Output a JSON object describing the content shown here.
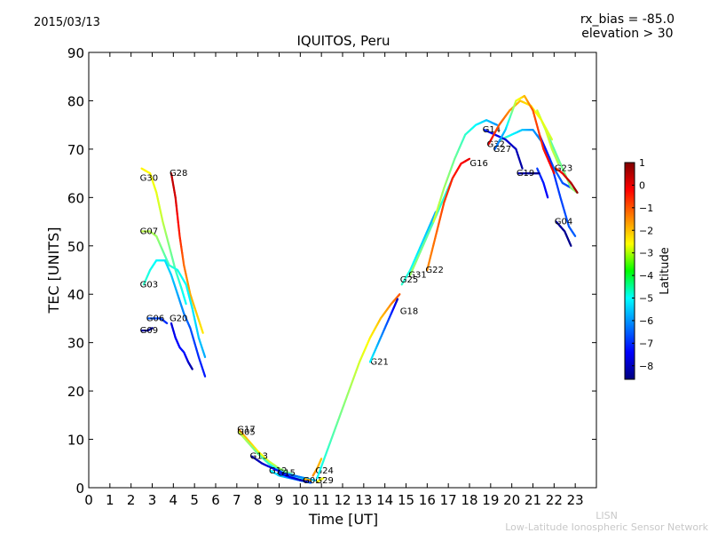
{
  "date": "2015/03/13",
  "params": {
    "rx_bias": "rx_bias = -85.0",
    "elevation": "elevation > 30"
  },
  "credit": {
    "short": "LISN",
    "long": "Low-Latitude Ionospheric Sensor Network"
  },
  "chart_data": {
    "type": "scatter",
    "title": "IQUITOS, Peru",
    "xlabel": "Time [UT]",
    "ylabel": "TEC [UNITS]",
    "xlim": [
      0,
      24
    ],
    "ylim": [
      0,
      90
    ],
    "xticks": [
      0,
      1,
      2,
      3,
      4,
      5,
      6,
      7,
      8,
      9,
      10,
      11,
      12,
      13,
      14,
      15,
      16,
      17,
      18,
      19,
      20,
      21,
      22,
      23
    ],
    "yticks": [
      0,
      10,
      20,
      30,
      40,
      50,
      60,
      70,
      80,
      90
    ],
    "colorbar": {
      "label": "Latitude",
      "min": -8.6,
      "max": 1.0,
      "ticks": [
        1,
        0,
        -1,
        -2,
        -3,
        -4,
        -5,
        -6,
        -7,
        -8
      ]
    },
    "series": [
      {
        "name": "G30",
        "label_at": [
          2.5,
          64
        ],
        "points": [
          [
            2.5,
            66,
            -2.5
          ],
          [
            2.9,
            65,
            -2.6
          ],
          [
            3.2,
            61,
            -2.8
          ],
          [
            3.5,
            55,
            -3.2
          ],
          [
            3.8,
            50,
            -3.8
          ],
          [
            4.1,
            45,
            -4.3
          ],
          [
            4.4,
            41,
            -4.8
          ],
          [
            4.6,
            38,
            -5
          ]
        ]
      },
      {
        "name": "G28",
        "label_at": [
          3.9,
          65
        ],
        "points": [
          [
            3.9,
            65,
            0.5
          ],
          [
            4.1,
            60,
            0.2
          ],
          [
            4.3,
            52,
            -0.5
          ],
          [
            4.5,
            46,
            -1.2
          ],
          [
            4.8,
            40,
            -1.8
          ],
          [
            5.1,
            36,
            -2.1
          ],
          [
            5.4,
            32,
            -2.4
          ]
        ]
      },
      {
        "name": "G07",
        "label_at": [
          2.5,
          53
        ],
        "points": [
          [
            2.5,
            53,
            -3.2
          ],
          [
            2.9,
            53,
            -3.3
          ],
          [
            3.2,
            52,
            -3.5
          ],
          [
            3.5,
            49,
            -4
          ],
          [
            3.8,
            46,
            -4.5
          ],
          [
            4.2,
            45,
            -4.8
          ],
          [
            4.6,
            42,
            -5
          ],
          [
            4.9,
            37,
            -5.2
          ],
          [
            5.2,
            31,
            -5.5
          ],
          [
            5.5,
            27,
            -5.8
          ]
        ]
      },
      {
        "name": "G03",
        "label_at": [
          2.5,
          42
        ],
        "points": [
          [
            2.6,
            42,
            -4.5
          ],
          [
            2.9,
            45,
            -4.8
          ],
          [
            3.2,
            47,
            -5
          ],
          [
            3.6,
            47,
            -5.2
          ],
          [
            3.9,
            44,
            -5.5
          ],
          [
            4.2,
            40,
            -5.8
          ],
          [
            4.5,
            36,
            -6.2
          ],
          [
            4.8,
            33,
            -6.6
          ],
          [
            5.2,
            27,
            -7
          ],
          [
            5.5,
            23,
            -7.2
          ]
        ]
      },
      {
        "name": "G06",
        "label_at": [
          2.8,
          35
        ],
        "points": [
          [
            2.8,
            35,
            -6.5
          ],
          [
            3.1,
            35,
            -6.7
          ],
          [
            3.4,
            35,
            -6.8
          ],
          [
            3.7,
            34,
            -7
          ]
        ]
      },
      {
        "name": "G09",
        "label_at": [
          2.5,
          32.5
        ],
        "points": [
          [
            2.5,
            32.5,
            -8.2
          ],
          [
            2.8,
            32.5,
            -8.3
          ],
          [
            3,
            33,
            -8.2
          ]
        ]
      },
      {
        "name": "G20",
        "label_at": [
          3.9,
          35
        ],
        "points": [
          [
            3.9,
            34,
            -7.8
          ],
          [
            4.1,
            31,
            -7.5
          ],
          [
            4.3,
            29,
            -7.3
          ],
          [
            4.5,
            28,
            -7.2
          ],
          [
            4.7,
            26,
            -7.8
          ],
          [
            4.9,
            24.5,
            -8.3
          ]
        ]
      },
      {
        "name": "G17",
        "label_at": [
          7.1,
          12
        ],
        "points": [
          [
            7.1,
            12,
            -1.5
          ],
          [
            7.5,
            10,
            -2
          ],
          [
            8,
            7.5,
            -2.5
          ],
          [
            8.5,
            5.5,
            -3
          ],
          [
            9,
            4,
            -3.5
          ],
          [
            9.5,
            3,
            -4
          ],
          [
            10,
            2,
            -4.5
          ],
          [
            10.5,
            1.5,
            -5
          ]
        ]
      },
      {
        "name": "G05",
        "label_at": [
          7.1,
          11.5
        ],
        "points": [
          [
            7.1,
            11.5,
            -3
          ],
          [
            7.5,
            9.5,
            -3.5
          ],
          [
            8,
            7,
            -4
          ],
          [
            8.5,
            5,
            -4.5
          ],
          [
            9,
            3.5,
            -5
          ],
          [
            9.5,
            2.5,
            -5.5
          ],
          [
            10,
            1.5,
            -6
          ],
          [
            10.5,
            1,
            -6.3
          ]
        ]
      },
      {
        "name": "G13",
        "label_at": [
          7.7,
          6.5
        ],
        "points": [
          [
            7.7,
            6.5,
            -8.3
          ],
          [
            8.2,
            5,
            -8
          ],
          [
            8.7,
            4,
            -7.5
          ],
          [
            9.2,
            3,
            -7
          ],
          [
            9.7,
            2.5,
            -6.5
          ],
          [
            10.2,
            2,
            -6
          ],
          [
            10.7,
            1.5,
            -5.5
          ]
        ]
      },
      {
        "name": "G12",
        "label_at": [
          8.6,
          3.5
        ],
        "points": [
          [
            8.6,
            3.5,
            -5
          ],
          [
            9,
            2.5,
            -5.5
          ],
          [
            9.5,
            2,
            -6
          ],
          [
            10,
            1.5,
            -6.5
          ],
          [
            10.5,
            1.2,
            -7
          ]
        ]
      },
      {
        "name": "G15",
        "label_at": [
          9,
          3
        ],
        "points": [
          [
            9,
            3,
            -7
          ],
          [
            9.5,
            2.2,
            -7.5
          ],
          [
            10,
            1.6,
            -8
          ],
          [
            10.3,
            1.3,
            -8.3
          ]
        ]
      },
      {
        "name": "G02",
        "label_at": [
          10.2,
          1.5
        ],
        "points": [
          [
            10.2,
            1.8,
            -2
          ],
          [
            10.5,
            1.5,
            -1.8
          ]
        ]
      },
      {
        "name": "G24",
        "label_at": [
          10.8,
          3.5
        ],
        "points": [
          [
            10.6,
            2.5,
            -1.5
          ],
          [
            10.8,
            4,
            -1.8
          ],
          [
            11,
            6,
            -2
          ]
        ]
      },
      {
        "name": "G29",
        "label_at": [
          10.8,
          1.5
        ],
        "points": [
          [
            10.8,
            1.2,
            -2.5
          ],
          [
            11.1,
            2,
            -2.7
          ]
        ]
      },
      {
        "name": "G21",
        "label_at": [
          13.4,
          26
        ],
        "points": [
          [
            10.8,
            2,
            -5
          ],
          [
            11.3,
            8,
            -4.5
          ],
          [
            11.8,
            14,
            -4
          ],
          [
            12.3,
            20,
            -3.5
          ],
          [
            12.8,
            26,
            -3
          ],
          [
            13.3,
            31,
            -2.5
          ],
          [
            13.8,
            35,
            -2
          ],
          [
            14.3,
            38,
            -1.5
          ],
          [
            14.7,
            40,
            -1
          ]
        ]
      },
      {
        "name": "G18",
        "label_at": [
          14.8,
          36.5
        ],
        "points": [
          [
            13.3,
            26,
            -5
          ],
          [
            13.8,
            31,
            -6
          ],
          [
            14.3,
            36,
            -7
          ],
          [
            14.6,
            39,
            -8
          ]
        ]
      },
      {
        "name": "G25",
        "label_at": [
          14.8,
          43
        ],
        "points": [
          [
            14.8,
            42,
            -4.5
          ],
          [
            15.2,
            45,
            -4.8
          ],
          [
            15.6,
            49,
            -5.2
          ],
          [
            16,
            53,
            -5.5
          ],
          [
            16.4,
            57,
            -5.8
          ]
        ]
      },
      {
        "name": "G31",
        "label_at": [
          15.2,
          44
        ],
        "points": [
          [
            15.2,
            44,
            -3.5
          ],
          [
            15.6,
            48,
            -3.8
          ],
          [
            16,
            52,
            -4.1
          ],
          [
            16.4,
            56,
            -4.4
          ],
          [
            16.8,
            60,
            -4.7
          ],
          [
            17.2,
            64,
            -5
          ]
        ]
      },
      {
        "name": "G22",
        "label_at": [
          16,
          45
        ],
        "points": [
          [
            16,
            45,
            -1.5
          ],
          [
            16.4,
            52,
            -1.2
          ],
          [
            16.8,
            59,
            -0.8
          ],
          [
            17.2,
            64,
            -0.5
          ],
          [
            17.6,
            67,
            -0.2
          ],
          [
            18,
            68,
            0
          ]
        ]
      },
      {
        "name": "G16",
        "label_at": [
          18.1,
          67
        ],
        "points": [
          [
            16.3,
            55,
            -3
          ],
          [
            16.8,
            62,
            -3.5
          ],
          [
            17.3,
            68,
            -4
          ],
          [
            17.8,
            73,
            -4.5
          ],
          [
            18.3,
            75,
            -5
          ],
          [
            18.8,
            76,
            -5.5
          ],
          [
            19.3,
            75,
            -6
          ]
        ]
      },
      {
        "name": "G14",
        "label_at": [
          18.7,
          74
        ],
        "points": [
          [
            18.7,
            74,
            -7
          ],
          [
            19.2,
            73,
            -7.5
          ],
          [
            19.7,
            72,
            -7.8
          ],
          [
            20.2,
            70,
            -8
          ],
          [
            20.5,
            66,
            -8.3
          ]
        ]
      },
      {
        "name": "G32",
        "label_at": [
          18.9,
          71
        ],
        "points": [
          [
            18.9,
            71,
            0
          ],
          [
            19.4,
            75,
            -1
          ],
          [
            19.9,
            78,
            -1.5
          ],
          [
            20.4,
            80,
            -2
          ],
          [
            20.9,
            79,
            -2.5
          ],
          [
            21.4,
            76,
            -2.8
          ],
          [
            21.9,
            72,
            -3
          ]
        ]
      },
      {
        "name": "G27",
        "label_at": [
          19.2,
          70
        ],
        "points": [
          [
            19.2,
            70,
            -6.5
          ],
          [
            19.7,
            74,
            -5.5
          ],
          [
            20.2,
            80,
            -3
          ],
          [
            20.6,
            81,
            -2
          ],
          [
            21,
            78,
            -1
          ],
          [
            21.5,
            70,
            -0.5
          ],
          [
            22,
            65,
            0
          ]
        ]
      },
      {
        "name": "G19",
        "label_at": [
          20.3,
          65
        ],
        "points": [
          [
            20.3,
            65,
            -8
          ],
          [
            20.8,
            65,
            -8.3
          ],
          [
            21.3,
            65,
            -8.5
          ]
        ]
      },
      {
        "name": "G23",
        "label_at": [
          22.1,
          66
        ],
        "points": [
          [
            22.1,
            66,
            -1
          ],
          [
            22.4,
            65,
            0
          ],
          [
            22.8,
            63,
            0.5
          ],
          [
            23.1,
            61,
            0.8
          ]
        ]
      },
      {
        "name": "G04",
        "label_at": [
          22.1,
          55
        ],
        "points": [
          [
            22.1,
            55,
            -8.2
          ],
          [
            22.5,
            53,
            -8.4
          ],
          [
            22.8,
            50,
            -8.5
          ]
        ]
      }
    ],
    "background_tracks": [
      [
        [
          19.5,
          72,
          -4
        ],
        [
          20,
          73,
          -5
        ],
        [
          20.5,
          74,
          -5.5
        ],
        [
          21,
          74,
          -6
        ],
        [
          21.5,
          71,
          -6.2
        ],
        [
          22,
          66,
          -6.4
        ],
        [
          22.4,
          63,
          -6.6
        ],
        [
          22.8,
          62,
          -6.8
        ],
        [
          23.1,
          61,
          -7
        ]
      ],
      [
        [
          21.2,
          78,
          -4.5
        ],
        [
          21.6,
          74,
          -4.3
        ],
        [
          22,
          70,
          -4.1
        ],
        [
          22.4,
          66,
          -3.9
        ],
        [
          22.8,
          62,
          -3.7
        ],
        [
          23.1,
          61,
          -3.5
        ]
      ],
      [
        [
          21.3,
          73,
          -7.5
        ],
        [
          21.8,
          68,
          -7
        ],
        [
          22.3,
          60,
          -6.8
        ],
        [
          22.7,
          54,
          -6.6
        ],
        [
          23,
          52,
          -6.5
        ]
      ],
      [
        [
          21.2,
          66,
          -6.8
        ],
        [
          21.5,
          63,
          -7.2
        ],
        [
          21.7,
          60,
          -7.5
        ]
      ],
      [
        [
          21.2,
          78,
          -3
        ],
        [
          21.6,
          74,
          -3
        ],
        [
          21.9,
          70,
          -3.2
        ],
        [
          22.2,
          67,
          -3.4
        ]
      ]
    ]
  }
}
